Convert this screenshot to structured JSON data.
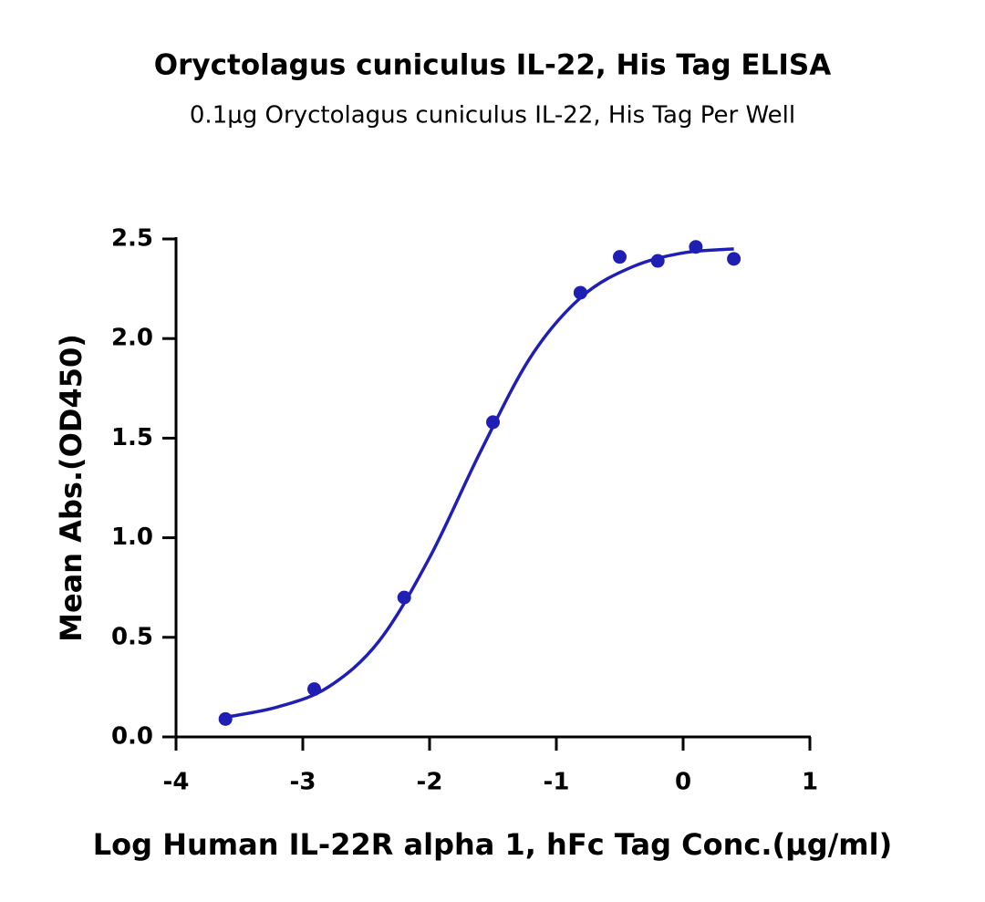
{
  "chart_data": {
    "type": "scatter",
    "title": "Oryctolagus cuniculus IL-22, His Tag ELISA",
    "subtitle": "0.1μg Oryctolagus cuniculus IL-22, His Tag Per Well",
    "x_label": "Log Human IL-22R alpha 1, hFc Tag Conc.(μg/ml)",
    "y_label": "Mean Abs.(OD450)",
    "xlim": [
      -4,
      1
    ],
    "xticks": [
      -4,
      -3,
      -2,
      -1,
      0,
      1
    ],
    "ylim": [
      0,
      2.5
    ],
    "yticks": [
      {
        "value": 0,
        "label": "0.0"
      },
      0.5,
      {
        "value": 1,
        "label": "1.0"
      },
      1.5,
      {
        "value": 2,
        "label": "2.0"
      },
      2.5
    ],
    "color": "#1f1fb4",
    "x": [
      -3.61,
      -2.91,
      -2.2,
      -1.5,
      -0.81,
      -0.5,
      -0.2,
      0.1,
      0.4
    ],
    "values": [
      0.09,
      0.24,
      0.7,
      1.58,
      2.23,
      2.41,
      2.39,
      2.46,
      2.4
    ],
    "fit": {
      "x": [
        -3.6,
        -3.2,
        -2.8,
        -2.4,
        -2.0,
        -1.6,
        -1.2,
        -0.8,
        -0.4,
        0.0,
        0.4
      ],
      "values": [
        0.1,
        0.15,
        0.25,
        0.48,
        0.9,
        1.43,
        1.91,
        2.21,
        2.36,
        2.43,
        2.45
      ]
    }
  }
}
